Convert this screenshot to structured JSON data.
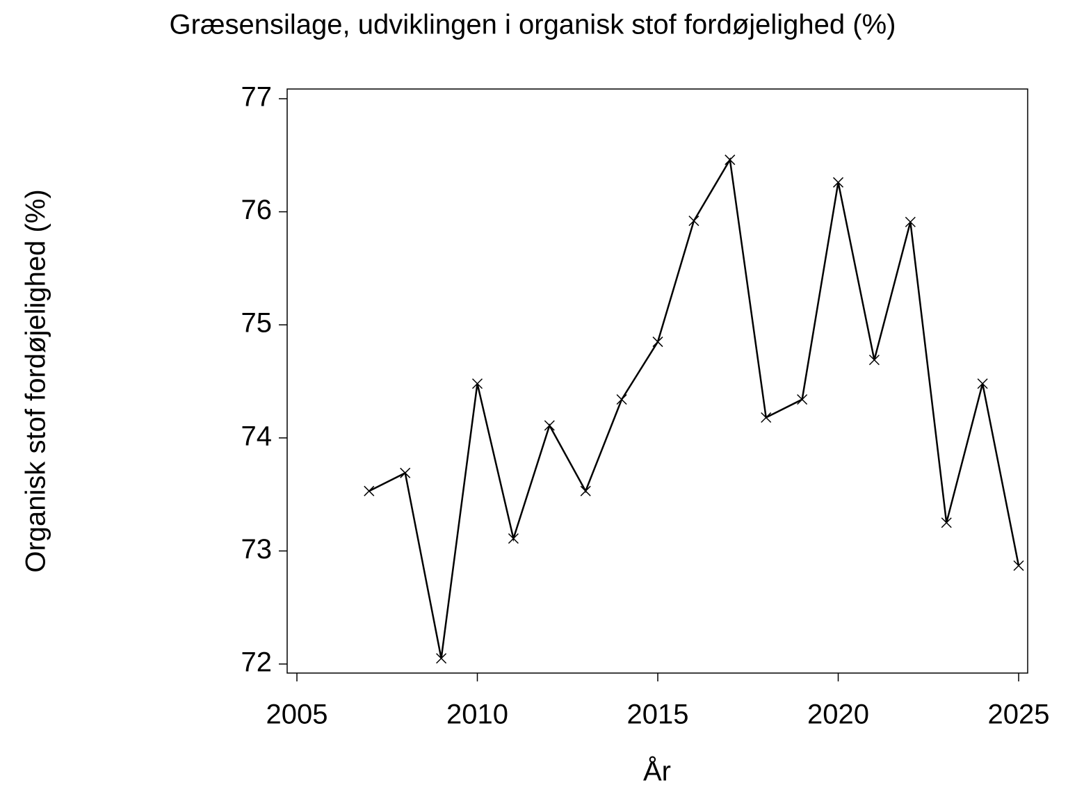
{
  "chart_data": {
    "type": "line",
    "title": "Græsensilage, udviklingen i organisk stof fordøjelighed (%)",
    "x_label": "År",
    "y_label": "Organisk stof fordøjelighed (%)",
    "x": [
      2007,
      2008,
      2009,
      2010,
      2011,
      2012,
      2013,
      2014,
      2015,
      2016,
      2017,
      2018,
      2019,
      2020,
      2021,
      2022,
      2023,
      2024,
      2025
    ],
    "series": [
      {
        "color": "#000000",
        "values": [
          73.53,
          73.69,
          72.05,
          74.48,
          73.11,
          74.11,
          73.53,
          74.34,
          74.85,
          75.92,
          76.46,
          74.18,
          74.34,
          76.26,
          74.69,
          75.91,
          73.25,
          74.48,
          72.87
        ]
      }
    ],
    "xlim": [
      2004.73,
      2025.25
    ],
    "xticks": [
      2005,
      2010,
      2015,
      2020,
      2025
    ],
    "ylim": [
      71.92,
      77.086
    ],
    "yticks": [
      72,
      73,
      74,
      75,
      76,
      77
    ],
    "marker": "x",
    "grid": false
  }
}
